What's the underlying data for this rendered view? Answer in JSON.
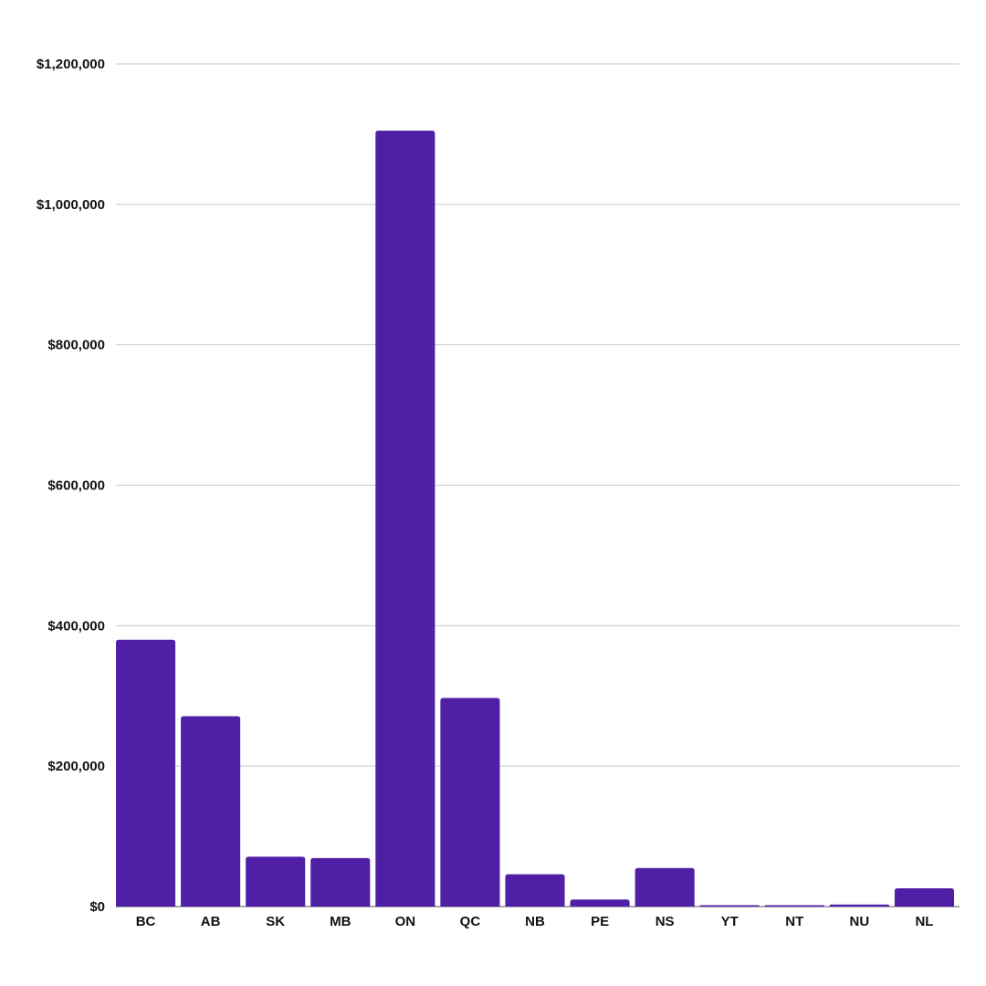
{
  "chart_data": {
    "type": "bar",
    "title": "",
    "xlabel": "",
    "ylabel": "",
    "categories": [
      "BC",
      "AB",
      "SK",
      "MB",
      "ON",
      "QC",
      "NB",
      "PE",
      "NS",
      "YT",
      "NT",
      "NU",
      "NL"
    ],
    "values": [
      380000,
      271000,
      71000,
      69000,
      1105000,
      297000,
      46000,
      10000,
      55000,
      2000,
      2000,
      3000,
      26000
    ],
    "ylim": [
      0,
      1200000
    ],
    "yticks": [
      0,
      200000,
      400000,
      600000,
      800000,
      1000000,
      1200000
    ],
    "ytick_labels": [
      "$0",
      "$200,000",
      "$400,000",
      "$600,000",
      "$800,000",
      "$1,000,000",
      "$1,200,000"
    ],
    "grid": true,
    "bar_color": "#4f1fa6",
    "legend": "none"
  }
}
